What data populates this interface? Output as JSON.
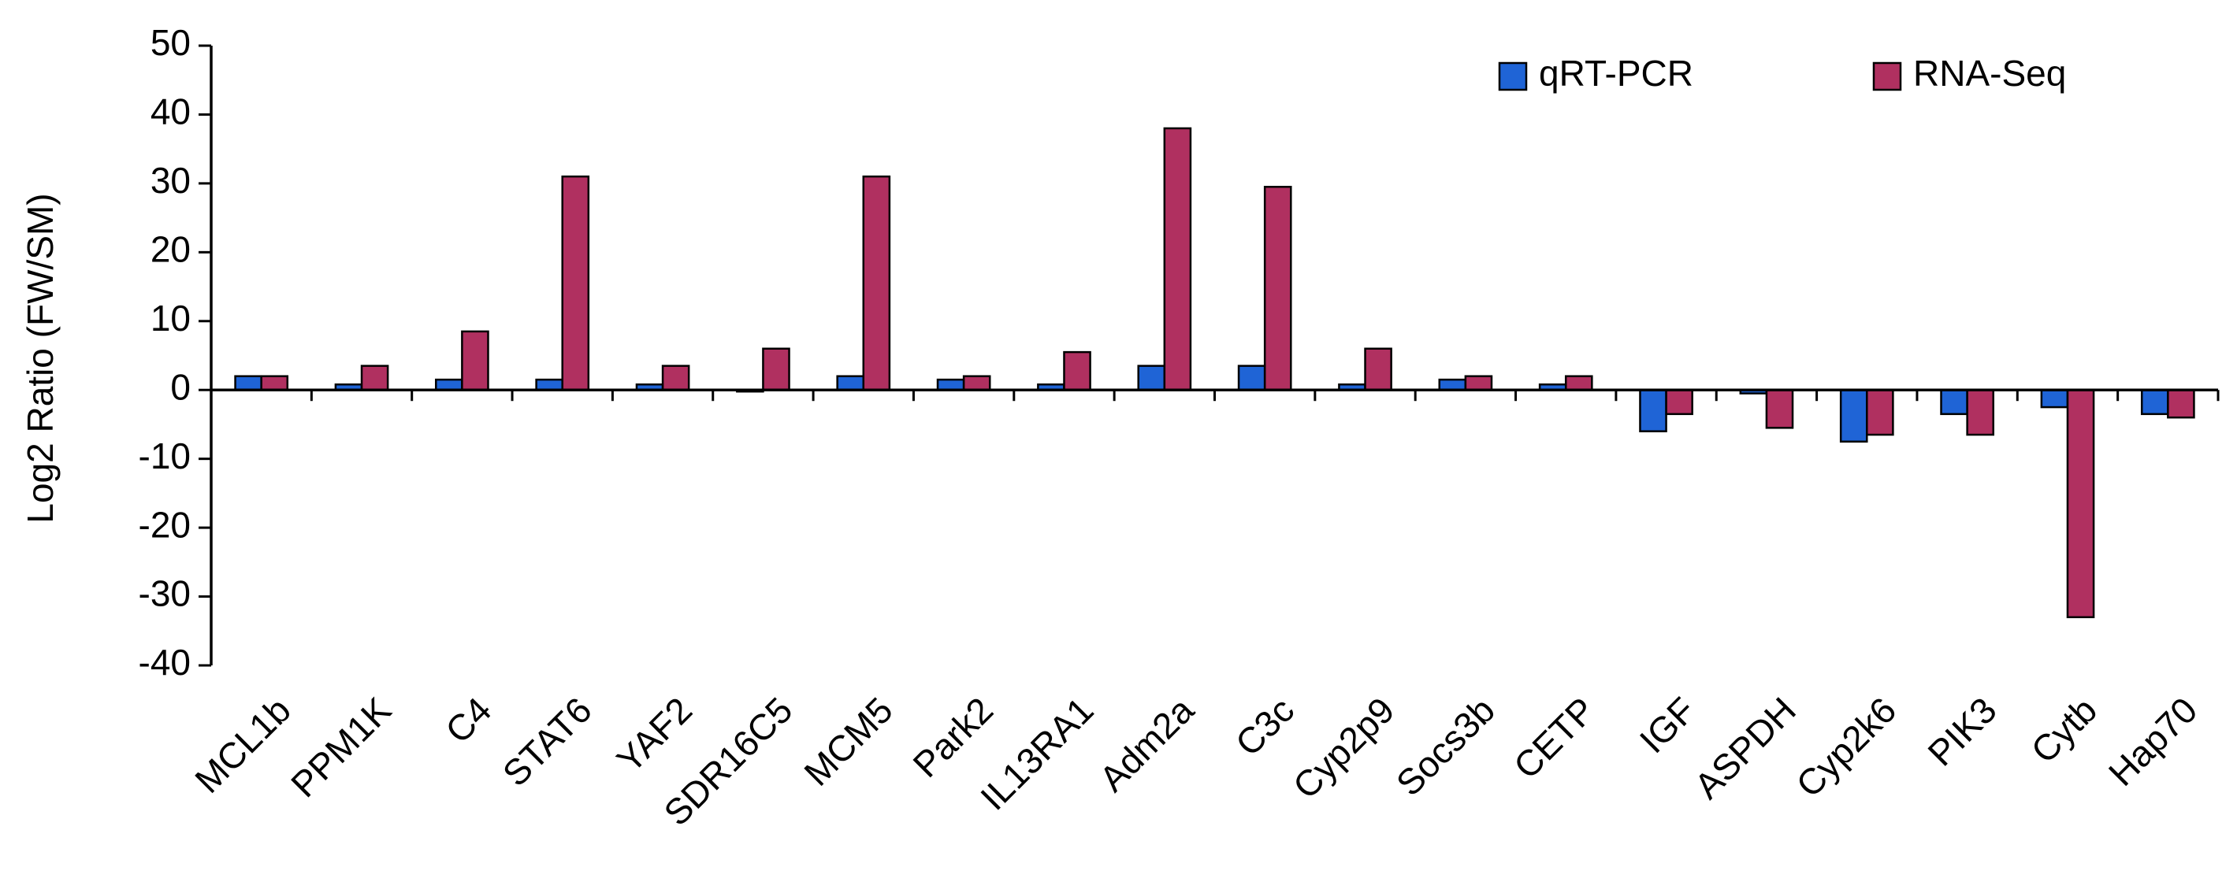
{
  "chart_data": {
    "type": "bar",
    "title": "",
    "xlabel": "",
    "ylabel": "Log2 Ratio (FW/SM)",
    "ylim": [
      -40,
      50
    ],
    "yticks": [
      -40,
      -30,
      -20,
      -10,
      0,
      10,
      20,
      30,
      40,
      50
    ],
    "grid": false,
    "legend_position": "top-right",
    "categories": [
      "MCL1b",
      "PPM1K",
      "C4",
      "STAT6",
      "YAF2",
      "SDR16C5",
      "MCM5",
      "Park2",
      "IL13RA1",
      "Adm2a",
      "C3c",
      "Cyp2p9",
      "Socs3b",
      "CETP",
      "IGF",
      "ASPDH",
      "Cyp2k6",
      "PIK3",
      "Cytb",
      "Hap70"
    ],
    "series": [
      {
        "name": "qRT-PCR",
        "color": "#1f64d6",
        "values": [
          2.0,
          0.8,
          1.5,
          1.5,
          0.8,
          0.0,
          2.0,
          1.5,
          0.8,
          3.5,
          3.5,
          0.8,
          1.5,
          0.8,
          -6.0,
          -0.5,
          -7.5,
          -3.5,
          -2.5,
          -3.5
        ]
      },
      {
        "name": "RNA-Seq",
        "color": "#b03060",
        "values": [
          2.0,
          3.5,
          8.5,
          31.0,
          3.5,
          6.0,
          31.0,
          2.0,
          5.5,
          38.0,
          29.5,
          6.0,
          2.0,
          2.0,
          -3.5,
          -5.5,
          -6.5,
          -6.5,
          -33.0,
          -4.0
        ]
      }
    ]
  }
}
